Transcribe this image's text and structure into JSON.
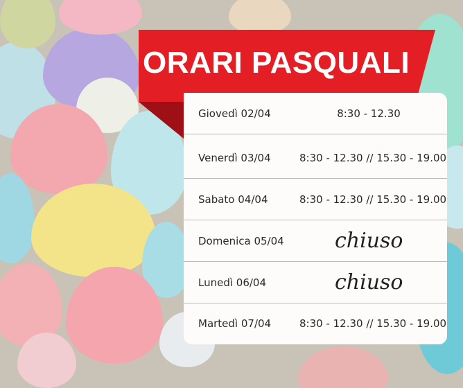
{
  "title": "ORARI PASQUALI",
  "colors": {
    "banner": "#e31e24",
    "banner_fold": "#9e1016",
    "card": "#fdfcfa"
  },
  "schedule": [
    {
      "day": "Giovedì 02/04",
      "hours": "8:30 - 12.30",
      "closed": false
    },
    {
      "day": "Venerdì 03/04",
      "hours": "8:30 - 12.30 // 15.30 - 19.00",
      "closed": false
    },
    {
      "day": "Sabato 04/04",
      "hours": "8:30 - 12.30 // 15.30 - 19.00",
      "closed": false
    },
    {
      "day": "Domenica 05/04",
      "hours": "chiuso",
      "closed": true
    },
    {
      "day": "Lunedì 06/04",
      "hours": "chiuso",
      "closed": true
    },
    {
      "day": "Martedì 07/04",
      "hours": "8:30 - 12.30 // 15.30 - 19.00",
      "closed": false
    }
  ]
}
